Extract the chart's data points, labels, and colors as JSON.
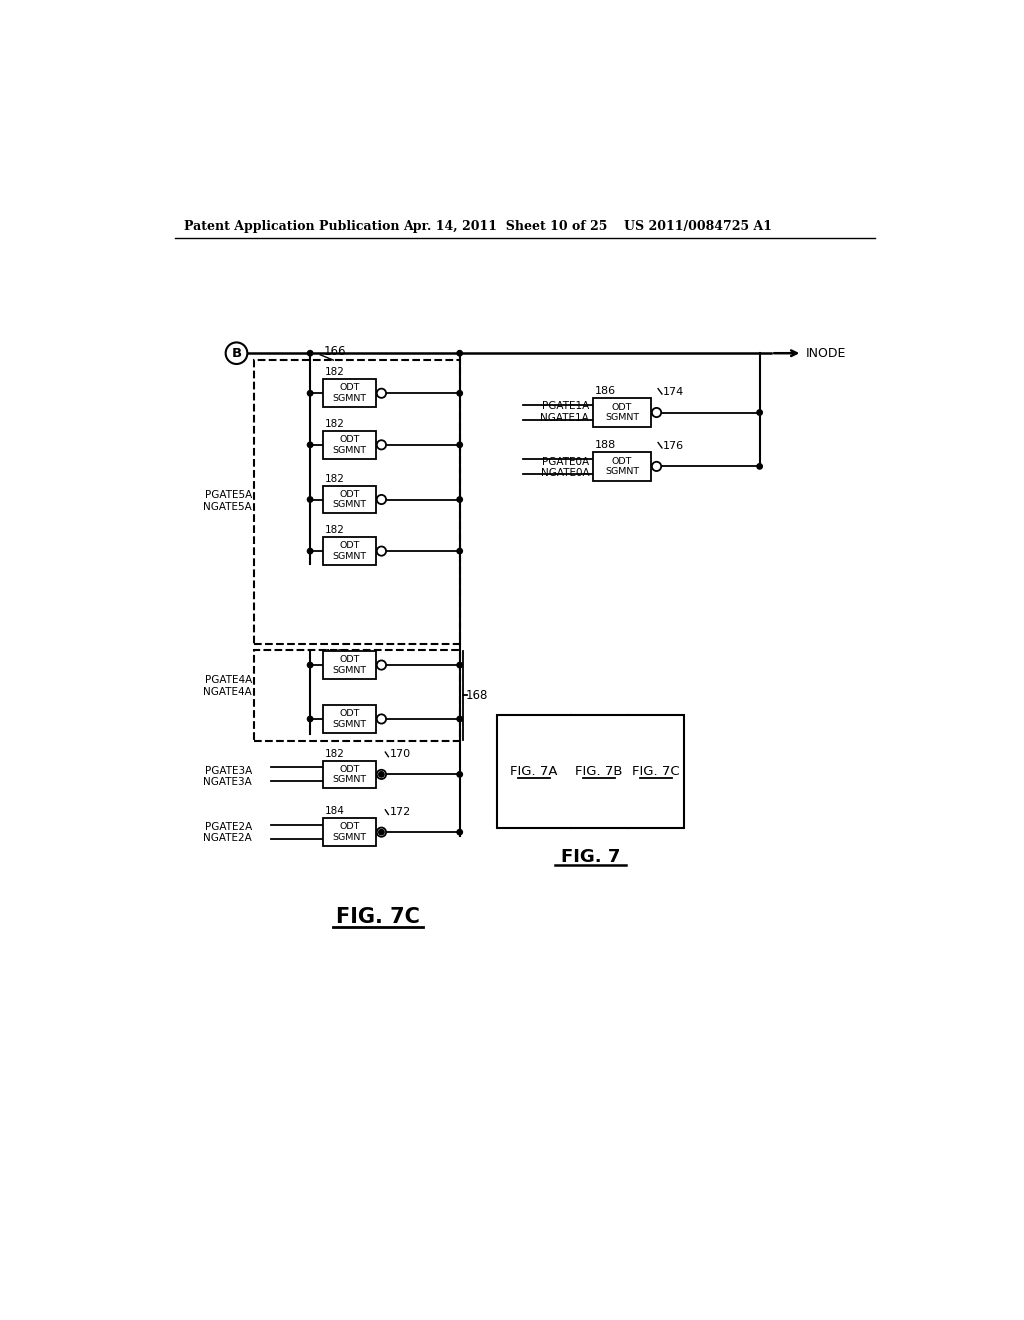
{
  "bg_color": "#ffffff",
  "header_left": "Patent Application Publication",
  "header_mid": "Apr. 14, 2011  Sheet 10 of 25",
  "header_right": "US 2011/0084725 A1",
  "fig_label": "FIG. 7C",
  "fig7_label": "FIG. 7",
  "fig7a_label": "FIG. 7A",
  "fig7b_label": "FIG. 7B",
  "fig7c_label": "FIG. 7C",
  "node_label": "INODE",
  "circle_b": "B",
  "ref_166": "166",
  "ref_168": "168",
  "ref_170": "170",
  "ref_172": "172",
  "ref_174": "174",
  "ref_176": "176",
  "ref_182": "182",
  "ref_184": "184",
  "ref_186": "186",
  "ref_188": "188"
}
